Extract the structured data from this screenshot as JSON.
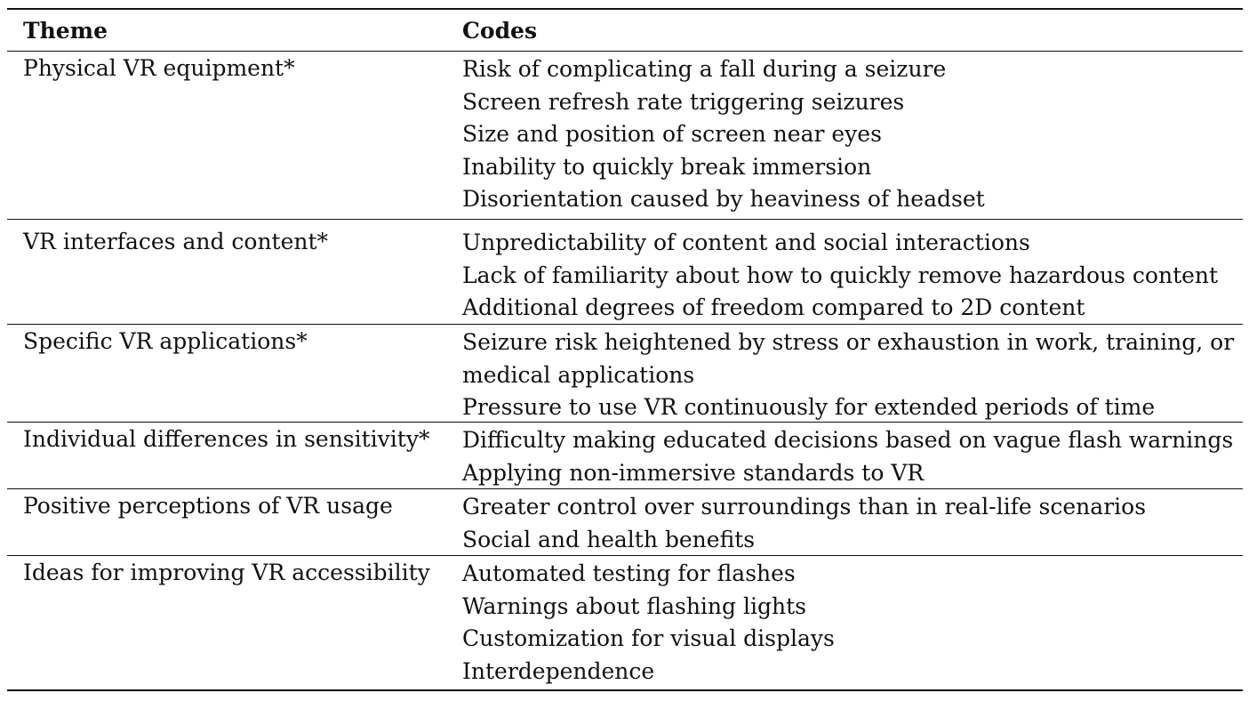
{
  "table": {
    "headers": {
      "theme": "Theme",
      "codes": "Codes"
    },
    "rows": [
      {
        "theme": "Physical VR equipment*",
        "codes": [
          "Risk of complicating a fall during a seizure",
          "Screen refresh rate triggering seizures",
          "Size and position of screen near eyes",
          "Inability to quickly break immersion",
          "Disorientation caused by heaviness of headset"
        ]
      },
      {
        "theme": "VR interfaces and content*",
        "codes": [
          "Unpredictability of content and social interactions",
          "Lack of familiarity about how to quickly remove hazardous content",
          "Additional degrees of freedom compared to 2D content"
        ]
      },
      {
        "theme": "Specific VR applications*",
        "codes": [
          "Seizure risk heightened by stress or exhaustion in work, training, or",
          "medical applications",
          "Pressure to use VR continuously for extended periods of time"
        ]
      },
      {
        "theme": "Individual differences in sensitivity*",
        "codes": [
          "Difficulty making educated decisions based on vague flash warnings",
          "Applying non-immersive standards to VR"
        ]
      },
      {
        "theme": "Positive perceptions of VR usage",
        "codes": [
          "Greater control over surroundings than in real-life scenarios",
          "Social and health benefits"
        ]
      },
      {
        "theme": "Ideas for improving VR accessibility",
        "codes": [
          "Automated testing for flashes",
          "Warnings about flashing lights",
          "Customization for visual displays",
          "Interdependence"
        ]
      }
    ]
  }
}
